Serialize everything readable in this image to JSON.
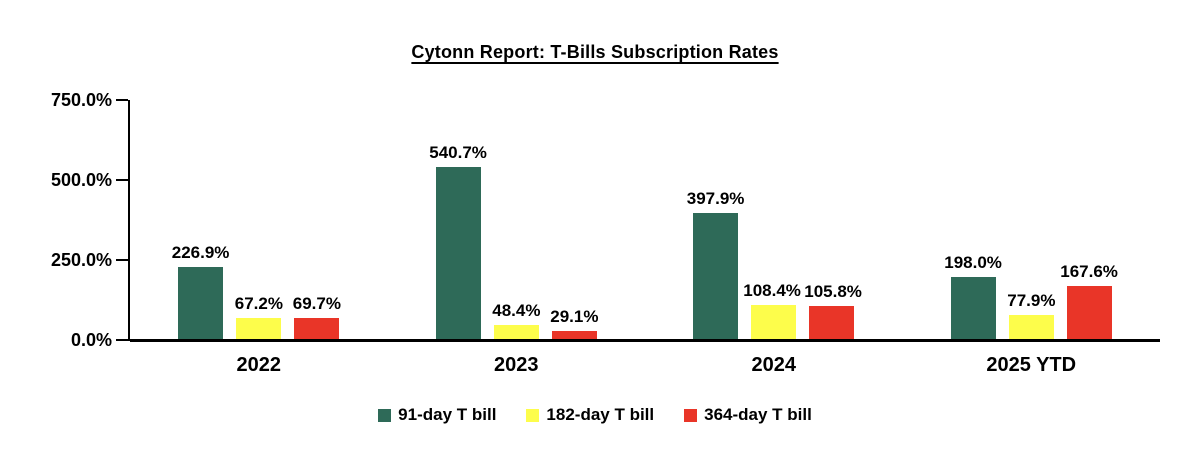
{
  "chart_data": {
    "type": "bar",
    "title": "Cytonn Report: T-Bills Subscription Rates",
    "categories": [
      "2022",
      "2023",
      "2024",
      "2025 YTD"
    ],
    "series": [
      {
        "name": "91-day T bill",
        "color": "#2E6A58",
        "values": [
          226.9,
          540.7,
          397.9,
          198.0
        ],
        "data_labels": [
          "226.9%",
          "540.7%",
          "397.9%",
          "198.0%"
        ]
      },
      {
        "name": "182-day T bill",
        "color": "#FDFD4B",
        "values": [
          67.2,
          48.4,
          108.4,
          77.9
        ],
        "data_labels": [
          "67.2%",
          "48.4%",
          "108.4%",
          "77.9%"
        ]
      },
      {
        "name": "364-day T bill",
        "color": "#E93528",
        "values": [
          69.7,
          29.1,
          105.8,
          167.6
        ],
        "data_labels": [
          "69.7%",
          "29.1%",
          "105.8%",
          "167.6%"
        ]
      }
    ],
    "xlabel": "",
    "ylabel": "",
    "ylim": [
      0,
      750
    ],
    "y_ticks": [
      {
        "value": 0,
        "label": "0.0%"
      },
      {
        "value": 250,
        "label": "250.0%"
      },
      {
        "value": 500,
        "label": "500.0%"
      },
      {
        "value": 750,
        "label": "750.0%"
      }
    ],
    "grid": false,
    "legend_position": "bottom",
    "axis_color": "#000000",
    "data_label_suffix": "%"
  }
}
